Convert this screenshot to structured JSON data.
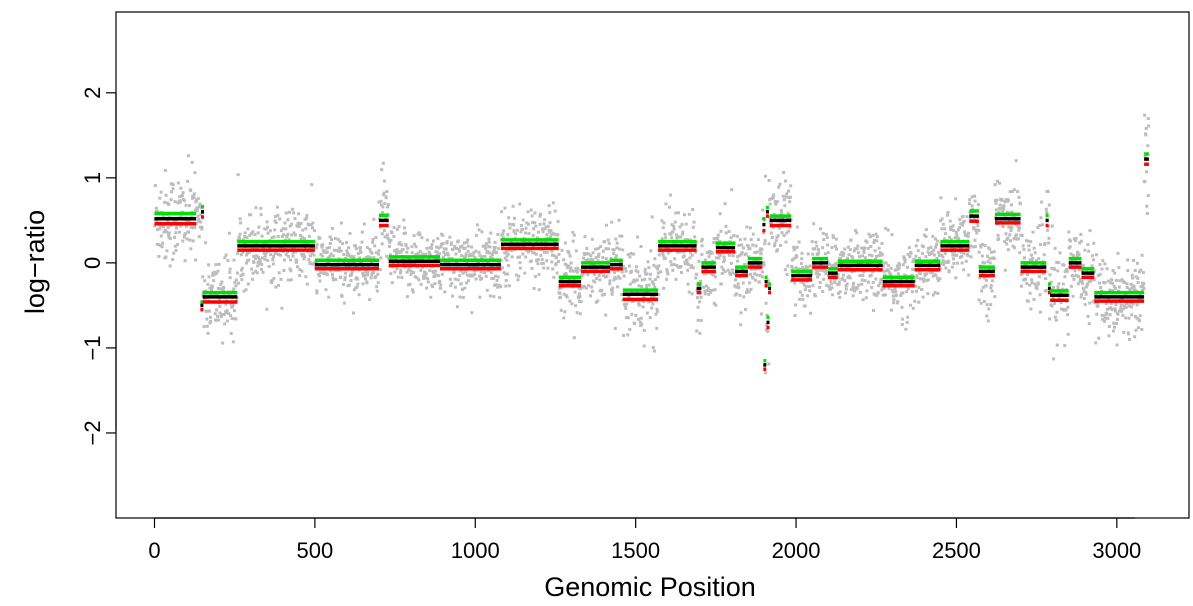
{
  "chart_data": {
    "type": "scatter",
    "title": "",
    "xlabel": "Genomic Position",
    "ylabel": "log−ratio",
    "xlim": [
      -120,
      3225
    ],
    "ylim": [
      -3.0,
      2.95
    ],
    "xticks": [
      0,
      500,
      1000,
      1500,
      2000,
      2500,
      3000
    ],
    "xtick_labels": [
      "0",
      "500",
      "1000",
      "1500",
      "2000",
      "2500",
      "3000"
    ],
    "yticks": [
      -2,
      -1,
      0,
      1,
      2
    ],
    "ytick_labels": [
      "−2",
      "−1",
      "0",
      "1",
      "2"
    ],
    "grid": false,
    "legend": "none",
    "colors": {
      "points": "#bdbdbd",
      "upper": "#00e000",
      "mean": "#000000",
      "lower": "#ff0000"
    },
    "series": [
      {
        "kind": "points",
        "note_free": true,
        "x_range": [
          0,
          3100
        ],
        "segments": [
          {
            "x0": 0,
            "x1": 130,
            "y": 0.52,
            "sd": 0.28
          },
          {
            "x0": 130,
            "x1": 150,
            "y": 0.6,
            "sd": 0.12
          },
          {
            "x0": 150,
            "x1": 260,
            "y": -0.4,
            "sd": 0.25
          },
          {
            "x0": 260,
            "x1": 500,
            "y": 0.2,
            "sd": 0.22
          },
          {
            "x0": 500,
            "x1": 700,
            "y": -0.02,
            "sd": 0.2
          },
          {
            "x0": 700,
            "x1": 730,
            "y": 0.5,
            "sd": 0.25
          },
          {
            "x0": 730,
            "x1": 890,
            "y": 0.02,
            "sd": 0.2
          },
          {
            "x0": 890,
            "x1": 1080,
            "y": -0.02,
            "sd": 0.2
          },
          {
            "x0": 1080,
            "x1": 1260,
            "y": 0.22,
            "sd": 0.22
          },
          {
            "x0": 1260,
            "x1": 1330,
            "y": -0.22,
            "sd": 0.22
          },
          {
            "x0": 1330,
            "x1": 1420,
            "y": -0.05,
            "sd": 0.2
          },
          {
            "x0": 1420,
            "x1": 1460,
            "y": -0.02,
            "sd": 0.2
          },
          {
            "x0": 1460,
            "x1": 1570,
            "y": -0.37,
            "sd": 0.28
          },
          {
            "x0": 1570,
            "x1": 1690,
            "y": 0.2,
            "sd": 0.22
          },
          {
            "x0": 1690,
            "x1": 1705,
            "y": -0.3,
            "sd": 0.2
          },
          {
            "x0": 1705,
            "x1": 1750,
            "y": -0.05,
            "sd": 0.2
          },
          {
            "x0": 1750,
            "x1": 1810,
            "y": 0.18,
            "sd": 0.2
          },
          {
            "x0": 1810,
            "x1": 1850,
            "y": -0.1,
            "sd": 0.2
          },
          {
            "x0": 1850,
            "x1": 1895,
            "y": 0.0,
            "sd": 0.2
          },
          {
            "x0": 1895,
            "x1": 1905,
            "y": 0.45,
            "sd": 0.3
          },
          {
            "x0": 1905,
            "x1": 1915,
            "y": -0.65,
            "sd": 0.35
          },
          {
            "x0": 1915,
            "x1": 1985,
            "y": 0.5,
            "sd": 0.25
          },
          {
            "x0": 1985,
            "x1": 2050,
            "y": -0.15,
            "sd": 0.2
          },
          {
            "x0": 2050,
            "x1": 2100,
            "y": 0.0,
            "sd": 0.2
          },
          {
            "x0": 2100,
            "x1": 2130,
            "y": -0.12,
            "sd": 0.2
          },
          {
            "x0": 2130,
            "x1": 2270,
            "y": -0.03,
            "sd": 0.2
          },
          {
            "x0": 2270,
            "x1": 2370,
            "y": -0.22,
            "sd": 0.22
          },
          {
            "x0": 2370,
            "x1": 2450,
            "y": -0.03,
            "sd": 0.2
          },
          {
            "x0": 2450,
            "x1": 2540,
            "y": 0.2,
            "sd": 0.22
          },
          {
            "x0": 2540,
            "x1": 2570,
            "y": 0.55,
            "sd": 0.25
          },
          {
            "x0": 2570,
            "x1": 2620,
            "y": -0.1,
            "sd": 0.22
          },
          {
            "x0": 2620,
            "x1": 2700,
            "y": 0.52,
            "sd": 0.25
          },
          {
            "x0": 2700,
            "x1": 2780,
            "y": -0.05,
            "sd": 0.2
          },
          {
            "x0": 2780,
            "x1": 2790,
            "y": 0.5,
            "sd": 0.2
          },
          {
            "x0": 2790,
            "x1": 2850,
            "y": -0.38,
            "sd": 0.28
          },
          {
            "x0": 2850,
            "x1": 2890,
            "y": 0.0,
            "sd": 0.2
          },
          {
            "x0": 2890,
            "x1": 2930,
            "y": -0.12,
            "sd": 0.2
          },
          {
            "x0": 2930,
            "x1": 3085,
            "y": -0.4,
            "sd": 0.25
          },
          {
            "x0": 3085,
            "x1": 3100,
            "y": 1.2,
            "sd": 0.5
          }
        ]
      }
    ],
    "segments_estimates": [
      {
        "x0": 0,
        "x1": 130,
        "mean": 0.52,
        "upper": 0.58,
        "lower": 0.46
      },
      {
        "x0": 145,
        "x1": 148,
        "mean": 0.6,
        "upper": 0.66,
        "lower": 0.54
      },
      {
        "x0": 143,
        "x1": 147,
        "mean": -0.5,
        "upper": -0.46,
        "lower": -0.55
      },
      {
        "x0": 150,
        "x1": 258,
        "mean": -0.4,
        "upper": -0.35,
        "lower": -0.46
      },
      {
        "x0": 258,
        "x1": 500,
        "mean": 0.2,
        "upper": 0.25,
        "lower": 0.15
      },
      {
        "x0": 500,
        "x1": 700,
        "mean": -0.02,
        "upper": 0.03,
        "lower": -0.07
      },
      {
        "x0": 700,
        "x1": 730,
        "mean": 0.5,
        "upper": 0.56,
        "lower": 0.44
      },
      {
        "x0": 730,
        "x1": 890,
        "mean": 0.02,
        "upper": 0.07,
        "lower": -0.03
      },
      {
        "x0": 890,
        "x1": 1080,
        "mean": -0.02,
        "upper": 0.03,
        "lower": -0.07
      },
      {
        "x0": 1080,
        "x1": 1260,
        "mean": 0.22,
        "upper": 0.27,
        "lower": 0.17
      },
      {
        "x0": 1260,
        "x1": 1330,
        "mean": -0.22,
        "upper": -0.17,
        "lower": -0.27
      },
      {
        "x0": 1330,
        "x1": 1420,
        "mean": -0.05,
        "upper": 0.0,
        "lower": -0.1
      },
      {
        "x0": 1420,
        "x1": 1460,
        "mean": -0.02,
        "upper": 0.03,
        "lower": -0.07
      },
      {
        "x0": 1460,
        "x1": 1570,
        "mean": -0.37,
        "upper": -0.32,
        "lower": -0.43
      },
      {
        "x0": 1570,
        "x1": 1690,
        "mean": 0.2,
        "upper": 0.25,
        "lower": 0.15
      },
      {
        "x0": 1690,
        "x1": 1705,
        "mean": -0.3,
        "upper": -0.25,
        "lower": -0.35
      },
      {
        "x0": 1705,
        "x1": 1750,
        "mean": -0.05,
        "upper": 0.0,
        "lower": -0.1
      },
      {
        "x0": 1750,
        "x1": 1810,
        "mean": 0.18,
        "upper": 0.23,
        "lower": 0.13
      },
      {
        "x0": 1810,
        "x1": 1850,
        "mean": -0.1,
        "upper": -0.05,
        "lower": -0.15
      },
      {
        "x0": 1850,
        "x1": 1895,
        "mean": 0.0,
        "upper": 0.05,
        "lower": -0.05
      },
      {
        "x0": 1895,
        "x1": 1900,
        "mean": 0.45,
        "upper": 0.52,
        "lower": 0.38
      },
      {
        "x0": 1898,
        "x1": 1902,
        "mean": -1.2,
        "upper": -1.15,
        "lower": -1.25
      },
      {
        "x0": 1902,
        "x1": 1906,
        "mean": -0.22,
        "upper": -0.17,
        "lower": -0.27
      },
      {
        "x0": 1906,
        "x1": 1910,
        "mean": 0.6,
        "upper": 0.65,
        "lower": 0.55
      },
      {
        "x0": 1908,
        "x1": 1913,
        "mean": -0.7,
        "upper": -0.64,
        "lower": -0.76
      },
      {
        "x0": 1913,
        "x1": 1918,
        "mean": -0.3,
        "upper": -0.25,
        "lower": -0.35
      },
      {
        "x0": 1918,
        "x1": 1985,
        "mean": 0.5,
        "upper": 0.55,
        "lower": 0.44
      },
      {
        "x0": 1985,
        "x1": 2050,
        "mean": -0.15,
        "upper": -0.1,
        "lower": -0.2
      },
      {
        "x0": 2050,
        "x1": 2100,
        "mean": 0.0,
        "upper": 0.05,
        "lower": -0.05
      },
      {
        "x0": 2100,
        "x1": 2130,
        "mean": -0.12,
        "upper": -0.07,
        "lower": -0.17
      },
      {
        "x0": 2130,
        "x1": 2270,
        "mean": -0.03,
        "upper": 0.02,
        "lower": -0.08
      },
      {
        "x0": 2270,
        "x1": 2370,
        "mean": -0.22,
        "upper": -0.17,
        "lower": -0.27
      },
      {
        "x0": 2370,
        "x1": 2450,
        "mean": -0.03,
        "upper": 0.02,
        "lower": -0.08
      },
      {
        "x0": 2450,
        "x1": 2540,
        "mean": 0.2,
        "upper": 0.25,
        "lower": 0.15
      },
      {
        "x0": 2540,
        "x1": 2570,
        "mean": 0.55,
        "upper": 0.61,
        "lower": 0.49
      },
      {
        "x0": 2570,
        "x1": 2620,
        "mean": -0.1,
        "upper": -0.05,
        "lower": -0.15
      },
      {
        "x0": 2620,
        "x1": 2700,
        "mean": 0.52,
        "upper": 0.57,
        "lower": 0.47
      },
      {
        "x0": 2700,
        "x1": 2780,
        "mean": -0.05,
        "upper": 0.0,
        "lower": -0.1
      },
      {
        "x0": 2778,
        "x1": 2785,
        "mean": 0.5,
        "upper": 0.56,
        "lower": 0.44
      },
      {
        "x0": 2785,
        "x1": 2792,
        "mean": -0.3,
        "upper": -0.25,
        "lower": -0.35
      },
      {
        "x0": 2792,
        "x1": 2850,
        "mean": -0.38,
        "upper": -0.33,
        "lower": -0.44
      },
      {
        "x0": 2850,
        "x1": 2890,
        "mean": 0.0,
        "upper": 0.05,
        "lower": -0.05
      },
      {
        "x0": 2890,
        "x1": 2930,
        "mean": -0.12,
        "upper": -0.07,
        "lower": -0.17
      },
      {
        "x0": 2930,
        "x1": 3085,
        "mean": -0.4,
        "upper": -0.35,
        "lower": -0.45
      },
      {
        "x0": 3085,
        "x1": 3100,
        "mean": 1.22,
        "upper": 1.28,
        "lower": 1.16
      }
    ]
  }
}
